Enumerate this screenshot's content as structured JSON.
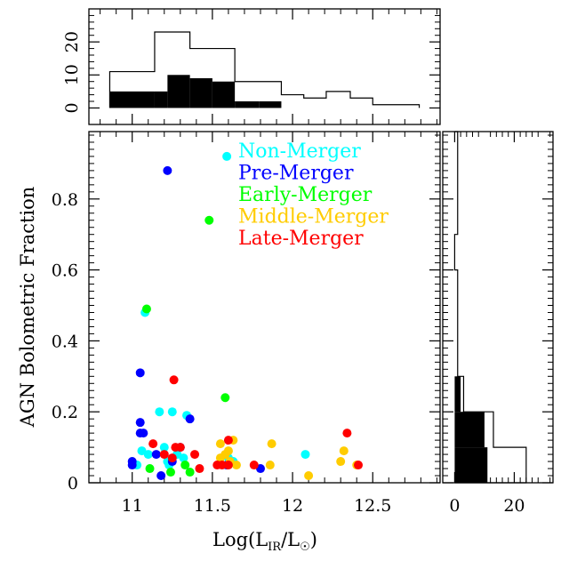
{
  "chart_data": [
    {
      "panel": "main-scatter",
      "type": "scatter",
      "xlabel_prefix": "Log(L",
      "xlabel_sub1": "IR",
      "xlabel_mid": "/L",
      "xlabel_sub2": "☉",
      "xlabel_suffix": ")",
      "ylabel": "AGN Bolometric Fraction",
      "xlim": [
        10.73,
        12.92
      ],
      "ylim": [
        0,
        0.99
      ],
      "xticks": [
        {
          "v": 11,
          "label": "11"
        },
        {
          "v": 11.5,
          "label": "11.5"
        },
        {
          "v": 12,
          "label": "12"
        },
        {
          "v": 12.5,
          "label": "12.5"
        }
      ],
      "yticks": [
        {
          "v": 0,
          "label": "0"
        },
        {
          "v": 0.2,
          "label": "0.2"
        },
        {
          "v": 0.4,
          "label": "0.4"
        },
        {
          "v": 0.6,
          "label": "0.6"
        },
        {
          "v": 0.8,
          "label": "0.8"
        }
      ],
      "grid": false,
      "legend_position": "top-right",
      "series": [
        {
          "name": "Non-Merger",
          "color": "#00ffff",
          "points": [
            [
              11.59,
              0.92
            ],
            [
              11.08,
              0.48
            ],
            [
              11.17,
              0.2
            ],
            [
              11.25,
              0.2
            ],
            [
              11.34,
              0.19
            ],
            [
              11.06,
              0.09
            ],
            [
              11.1,
              0.08
            ],
            [
              11.2,
              0.1
            ],
            [
              11.22,
              0.06
            ],
            [
              11.23,
              0.05
            ],
            [
              11.28,
              0.08
            ],
            [
              11.32,
              0.07
            ],
            [
              11.03,
              0.05
            ],
            [
              11.6,
              0.07
            ],
            [
              11.63,
              0.06
            ],
            [
              12.08,
              0.08
            ]
          ]
        },
        {
          "name": "Pre-Merger",
          "color": "#0000ff",
          "points": [
            [
              11.22,
              0.88
            ],
            [
              11.05,
              0.31
            ],
            [
              11.05,
              0.17
            ],
            [
              11.05,
              0.14
            ],
            [
              11.07,
              0.14
            ],
            [
              11.36,
              0.18
            ],
            [
              11.0,
              0.06
            ],
            [
              11.0,
              0.05
            ],
            [
              11.15,
              0.08
            ],
            [
              11.18,
              0.02
            ],
            [
              11.25,
              0.06
            ],
            [
              11.3,
              0.1
            ],
            [
              11.59,
              0.05
            ],
            [
              11.8,
              0.04
            ]
          ]
        },
        {
          "name": "Early-Merger",
          "color": "#00ff00",
          "points": [
            [
              11.48,
              0.74
            ],
            [
              11.09,
              0.49
            ],
            [
              11.58,
              0.24
            ],
            [
              11.11,
              0.04
            ],
            [
              11.33,
              0.05
            ],
            [
              11.36,
              0.03
            ],
            [
              11.24,
              0.03
            ]
          ]
        },
        {
          "name": "Middle-Merger",
          "color": "#ffcc00",
          "points": [
            [
              11.55,
              0.11
            ],
            [
              11.63,
              0.12
            ],
            [
              11.87,
              0.11
            ],
            [
              11.58,
              0.08
            ],
            [
              11.6,
              0.09
            ],
            [
              11.55,
              0.07
            ],
            [
              11.61,
              0.06
            ],
            [
              11.65,
              0.05
            ],
            [
              12.32,
              0.09
            ],
            [
              12.3,
              0.06
            ],
            [
              12.1,
              0.02
            ],
            [
              11.86,
              0.05
            ],
            [
              12.4,
              0.05
            ]
          ]
        },
        {
          "name": "Late-Merger",
          "color": "#ff0000",
          "points": [
            [
              11.26,
              0.29
            ],
            [
              11.13,
              0.11
            ],
            [
              11.27,
              0.1
            ],
            [
              11.3,
              0.1
            ],
            [
              11.25,
              0.07
            ],
            [
              11.2,
              0.08
            ],
            [
              11.39,
              0.08
            ],
            [
              11.42,
              0.04
            ],
            [
              11.53,
              0.05
            ],
            [
              11.6,
              0.12
            ],
            [
              11.56,
              0.05
            ],
            [
              11.6,
              0.05
            ],
            [
              11.76,
              0.05
            ],
            [
              12.34,
              0.14
            ],
            [
              12.41,
              0.05
            ]
          ]
        }
      ]
    },
    {
      "panel": "top-histogram",
      "type": "histogram",
      "xlim": [
        10.73,
        12.92
      ],
      "ylim": [
        -5,
        30
      ],
      "yticks": [
        {
          "v": 0,
          "label": "0"
        },
        {
          "v": 10,
          "label": "10"
        },
        {
          "v": 20,
          "label": "20"
        }
      ],
      "all": {
        "edges": [
          10.86,
          11.07,
          11.14,
          11.22,
          11.36,
          11.5,
          11.64,
          11.79,
          11.93,
          12.07,
          12.21,
          12.36,
          12.5,
          12.64,
          12.79
        ],
        "counts": [
          11,
          11,
          23,
          23,
          18,
          18,
          8,
          8,
          4,
          3,
          5,
          3,
          1,
          1
        ]
      },
      "filled": {
        "edges": [
          10.86,
          11.14,
          11.22,
          11.36,
          11.5,
          11.64,
          11.79,
          11.93
        ],
        "counts": [
          5,
          5,
          10,
          9,
          8,
          2,
          2
        ]
      }
    },
    {
      "panel": "right-histogram",
      "type": "histogram",
      "orientation": "horizontal",
      "xlim": [
        -4,
        33
      ],
      "ylim": [
        0,
        0.99
      ],
      "xticks": [
        {
          "v": 0,
          "label": "0"
        },
        {
          "v": 20,
          "label": "20"
        }
      ],
      "all": {
        "edges": [
          0,
          0.1,
          0.2,
          0.3,
          0.4,
          0.5,
          0.6,
          0.7,
          0.8,
          0.9,
          0.99
        ],
        "counts": [
          24,
          13,
          3,
          1,
          1,
          1,
          0,
          1,
          1,
          1
        ]
      },
      "filled": {
        "edges": [
          0,
          0.1,
          0.2,
          0.3
        ],
        "counts": [
          11,
          10,
          2
        ]
      }
    }
  ]
}
